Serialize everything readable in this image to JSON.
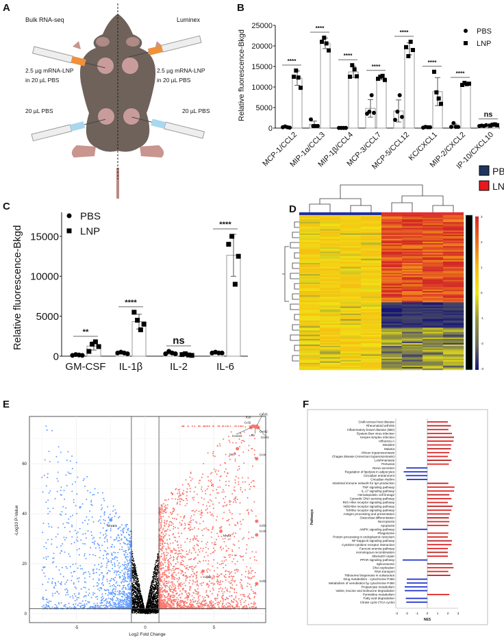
{
  "panels": {
    "a": "A",
    "b": "B",
    "c": "C",
    "d": "D",
    "e": "E",
    "f": "F"
  },
  "panel_a": {
    "left_title": "Bulk RNA-seq",
    "right_title": "Luminex",
    "lnp_dose_line1": "2.5 µg mRNA-LNP",
    "lnp_dose_line2": "in 20 µL PBS",
    "pbs_dose": "20 µL PBS",
    "colors": {
      "mouse": "#6e625a",
      "site": "#c99c9c",
      "lnp_syringe": "#f0903a",
      "pbs_syringe": "#a9d8ee"
    }
  },
  "chart_data": [
    {
      "id": "B",
      "type": "bar",
      "ylabel": "Relative fluorescence-Bkgd",
      "ylim": [
        0,
        25000
      ],
      "yticks": [
        0,
        5000,
        10000,
        15000,
        20000,
        25000
      ],
      "legend": [
        "PBS",
        "LNP"
      ],
      "legend_position": "top-right",
      "categories": [
        "MCP-1/CCL2",
        "MIP-1α/CCL3",
        "MIP-1β/CCL4",
        "MCP-3/CCL7",
        "MCP-5/CCL12",
        "KC/CXCL1",
        "MIP-2/CXCL2",
        "IP-10/CXCL10"
      ],
      "series": [
        {
          "name": "PBS",
          "points": [
            [
              200,
              400,
              200,
              100
            ],
            [
              2100,
              500,
              500,
              500
            ],
            [
              50,
              50,
              50,
              50
            ],
            [
              3500,
              4000,
              8000,
              3700
            ],
            [
              2000,
              4000,
              8000,
              2700
            ],
            [
              100,
              300,
              200,
              200
            ],
            [
              300,
              1200,
              300,
              300
            ],
            [
              500,
              600,
              500,
              700
            ]
          ]
        },
        {
          "name": "LNP",
          "points": [
            [
              12500,
              14000,
              12300,
              9800
            ],
            [
              21000,
              22000,
              20600,
              18900
            ],
            [
              12500,
              15300,
              14300,
              12600
            ],
            [
              12000,
              12500,
              12700,
              11700
            ],
            [
              19700,
              17500,
              21000,
              19000
            ],
            [
              13700,
              8700,
              7200,
              5900
            ],
            [
              10500,
              11000,
              10700,
              10800
            ],
            [
              600,
              800,
              900,
              700
            ]
          ]
        }
      ],
      "significance": [
        "****",
        "****",
        "****",
        "****",
        "****",
        "****",
        "****",
        "ns"
      ]
    },
    {
      "id": "C",
      "type": "bar",
      "ylabel": "Relative fluorescence-Bkgd",
      "ylim": [
        0,
        18000
      ],
      "yticks": [
        0,
        5000,
        10000,
        15000
      ],
      "legend": [
        "PBS",
        "LNP"
      ],
      "legend_position": "top-left",
      "categories": [
        "GM-CSF",
        "IL-1β",
        "IL-2",
        "IL-6"
      ],
      "series": [
        {
          "name": "PBS",
          "points": [
            [
              100,
              200,
              150,
              100
            ],
            [
              400,
              500,
              400,
              300
            ],
            [
              300,
              600,
              400,
              300
            ],
            [
              400,
              500,
              400,
              400
            ]
          ]
        },
        {
          "name": "LNP",
          "points": [
            [
              600,
              1500,
              1800,
              1200
            ],
            [
              5500,
              4500,
              3300,
              4000
            ],
            [
              200,
              300,
              150,
              100
            ],
            [
              14000,
              15000,
              9000,
              12500
            ]
          ]
        }
      ],
      "significance": [
        "**",
        "****",
        "ns",
        "****"
      ]
    },
    {
      "id": "D",
      "type": "heatmap",
      "legend": [
        {
          "name": "PBS",
          "color": "#1f3560"
        },
        {
          "name": "LNP",
          "color": "#e8191e"
        }
      ],
      "colorbar_ticks": [
        "3",
        "2",
        "1",
        "0",
        "-1",
        "-2",
        "-3"
      ],
      "colorbar_range": [
        -3,
        3
      ],
      "column_groups": [
        "PBS",
        "PBS",
        "PBS",
        "PBS",
        "LNP",
        "LNP",
        "LNP",
        "LNP"
      ],
      "pattern": "upregulated genes (upper block) high in LNP; downregulated genes (lower block) low in LNP"
    },
    {
      "id": "E",
      "type": "scatter",
      "xlabel": "Log2 Fold Change",
      "ylabel": "-Log10 P-Value",
      "xticks": [
        -5,
        0,
        5
      ],
      "yticks": [
        0,
        20,
        40,
        60
      ],
      "xlim": [
        -8.5,
        8.8
      ],
      "ylim": [
        -4,
        79
      ],
      "thresholds": {
        "log2fc": [
          -1,
          1
        ],
        "neg_log10_p": 2
      },
      "colors": {
        "down": "#619cff",
        "up": "#f8766d",
        "ns": "#000000"
      },
      "labeled_genes": [
        {
          "gene": "Nlrp10",
          "x": -2.5,
          "y": 37.5
        },
        {
          "gene": "Il1b",
          "x": 7.8,
          "y": 75
        },
        {
          "gene": "Cxcl5",
          "x": 8.1,
          "y": 75
        },
        {
          "gene": "Ccl2",
          "x": 7.9,
          "y": 75
        },
        {
          "gene": "Cxcl10",
          "x": 7.7,
          "y": 74.5
        },
        {
          "gene": "Il6",
          "x": 8.0,
          "y": 74.8
        },
        {
          "gene": "Cxcl2",
          "x": 8.1,
          "y": 74.7
        },
        {
          "gene": "Cxcl1",
          "x": 8.2,
          "y": 74.5
        },
        {
          "gene": "Ccl7",
          "x": 6.7,
          "y": 66
        },
        {
          "gene": "Ccl4",
          "x": 8.1,
          "y": 62
        },
        {
          "gene": "Ccl3",
          "x": 8.1,
          "y": 37
        },
        {
          "gene": "Csf3",
          "x": 8.1,
          "y": 37
        },
        {
          "gene": "Ccl3",
          "x": 8.1,
          "y": 31.5
        },
        {
          "gene": "Nlrp3",
          "x": 5.5,
          "y": 33
        },
        {
          "gene": "Ccl12",
          "x": 4.2,
          "y": 17
        },
        {
          "gene": "Csf2",
          "x": 8.1,
          "y": 12
        }
      ]
    },
    {
      "id": "F",
      "type": "bar",
      "orientation": "horizontal",
      "xlabel": "NES",
      "ylabel": "Pathways",
      "xlim": [
        -3,
        3
      ],
      "xticks": [
        -3,
        -2,
        -1,
        0,
        1,
        2,
        3
      ],
      "colors": {
        "positive": "#e02424",
        "negative": "#2233cc"
      },
      "categories": [
        "Graft-versus-host disease",
        "Rheumatoid arthritis",
        "Inflammatory bowel disease (IBD)",
        "Epstein-Barr virus infection",
        "Herpes simplex infection",
        "Influenza A",
        "Measles",
        "Malaria",
        "African trypanosomiasis",
        "Chagas disease (American trypanosomiasis)",
        "Leishmaniasis",
        "Pertussis",
        "Renin secretion",
        "Regulation of lipolysis in adipocytes",
        "Circadian entrainment",
        "Circadian rhythm",
        "Intestinal immune network for IgA production",
        "TNF signaling pathway",
        "IL-17 signaling pathway",
        "Hematopoietic cell lineage",
        "Cytosolic DNA-sensing pathway",
        "RIG-I-like receptor signaling pathway",
        "NOD-like receptor signaling pathway",
        "Toll-like receptor signaling pathway",
        "Antigen processing and presentation",
        "Osteoclast differentiation",
        "Necroptosis",
        "Apoptosis",
        "AMPK signaling pathway",
        "Phagosome",
        "Protein processing in endoplasmic reticulum",
        "NF-kappa B signaling pathway",
        "Cytokine-cytokine receptor interaction",
        "Fanconi anemia pathway",
        "Homologous recombination",
        "Mismatch repair",
        "PPAR signaling pathway",
        "Spliceosome",
        "DNA replication",
        "RNA transport",
        "Ribosome biogenesis in eukaryotes",
        "Drug metabolism - cytochrome P450",
        "Metabolism of xenobiotics by cytochrome P450",
        "Propanoate metabolism",
        "Valine, leucine and isoleucine degradation",
        "Pyrimidine metabolism",
        "Fatty acid degradation",
        "Citrate cycle (TCA cycle)"
      ],
      "values": [
        2.0,
        2.3,
        2.05,
        2.4,
        2.6,
        2.55,
        2.35,
        2.3,
        2.15,
        2.0,
        2.35,
        2.1,
        -2.05,
        -2.3,
        -2.1,
        -2.0,
        2.05,
        2.65,
        2.6,
        2.15,
        2.35,
        2.0,
        2.45,
        2.35,
        2.2,
        2.1,
        2.15,
        2.05,
        -2.4,
        2.05,
        2.0,
        2.4,
        2.35,
        2.0,
        2.0,
        2.0,
        -2.4,
        2.45,
        2.55,
        2.05,
        2.25,
        -2.0,
        -2.0,
        -2.2,
        -2.2,
        2.15,
        -2.1,
        -2.05
      ]
    }
  ]
}
